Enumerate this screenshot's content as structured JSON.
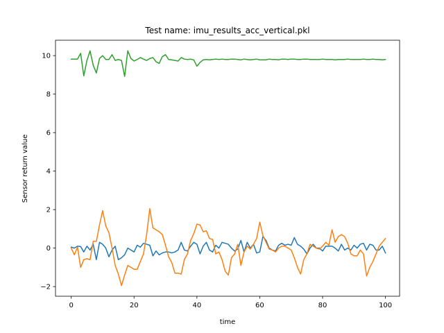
{
  "chart_data": {
    "type": "line",
    "title": "Test name: imu_results_acc_vertical.pkl",
    "xlabel": "time",
    "ylabel": "Sensor return value",
    "xlim": [
      -5,
      104.5
    ],
    "ylim": [
      -2.5,
      10.8
    ],
    "xticks": [
      0,
      20,
      40,
      60,
      80,
      100
    ],
    "yticks": [
      -2,
      0,
      2,
      4,
      6,
      8,
      10
    ],
    "grid": false,
    "series": [
      {
        "color": "#1f77b4",
        "values": [
          0.05,
          0.0,
          0.1,
          0.08,
          -0.2,
          0.1,
          -0.1,
          0.2,
          -0.6,
          0.3,
          0.2,
          0.0,
          -0.45,
          -0.1,
          0.1,
          -0.6,
          -0.5,
          -0.35,
          0.0,
          -0.1,
          -0.2,
          0.15,
          0.05,
          0.25,
          0.2,
          0.15,
          -0.4,
          -0.15,
          -0.35,
          -0.25,
          -0.2,
          -0.2,
          -0.25,
          -0.2,
          -0.1,
          0.3,
          -0.1,
          -0.15,
          0.1,
          0.3,
          0.2,
          -0.3,
          0.1,
          0.3,
          -0.1,
          -0.2,
          0.15,
          0.0,
          0.3,
          0.25,
          0.2,
          0.0,
          -0.15,
          -0.05,
          0.4,
          -0.2,
          0.3,
          0.0,
          0.2,
          -0.25,
          -0.2,
          0.6,
          0.4,
          0.0,
          -0.1,
          -0.15,
          0.15,
          0.25,
          0.15,
          0.2,
          0.15,
          0.55,
          0.2,
          0.1,
          -0.05,
          -0.3,
          0.0,
          0.2,
          0.0,
          0.0,
          -0.15,
          0.1,
          0.1,
          0.1,
          0.0,
          -0.15,
          0.2,
          -0.1,
          0.0,
          -0.1,
          0.15,
          0.0,
          0.2,
          0.25,
          -0.1,
          0.2,
          0.15,
          -0.1,
          -0.1,
          0.1,
          -0.25
        ]
      },
      {
        "color": "#ff7f0e",
        "values": [
          0.0,
          -0.35,
          0.05,
          -1.0,
          -0.6,
          -0.55,
          -0.6,
          0.35,
          0.35,
          1.2,
          1.95,
          1.15,
          0.8,
          0.0,
          -0.9,
          -1.35,
          -1.95,
          -1.4,
          -0.9,
          -1.0,
          -1.1,
          -1.1,
          -0.7,
          -0.3,
          0.7,
          2.05,
          1.05,
          0.95,
          0.85,
          0.7,
          0.15,
          -0.45,
          -0.75,
          -1.3,
          -1.3,
          -1.35,
          -0.6,
          -0.3,
          0.4,
          0.75,
          1.25,
          1.2,
          0.85,
          0.9,
          0.5,
          0.45,
          -0.3,
          -0.2,
          -0.6,
          -1.2,
          -1.4,
          -0.5,
          -0.3,
          0.2,
          -0.9,
          -0.2,
          0.1,
          -0.05,
          0.2,
          0.5,
          1.35,
          0.65,
          0.3,
          -0.05,
          -0.1,
          -0.2,
          0.0,
          0.1,
          0.1,
          0.0,
          -0.1,
          -0.5,
          -1.0,
          -1.35,
          -0.6,
          -0.3,
          0.2,
          0.1,
          0.0,
          -0.05,
          0.1,
          0.3,
          0.15,
          0.95,
          0.3,
          0.6,
          0.7,
          0.6,
          0.25,
          -0.3,
          -0.4,
          -0.4,
          -0.1,
          -0.3,
          -1.45,
          -1.0,
          -0.7,
          -0.3,
          0.1,
          0.3,
          0.5
        ]
      },
      {
        "color": "#2ca02c",
        "values": [
          9.82,
          9.82,
          9.82,
          10.12,
          8.95,
          9.75,
          10.25,
          9.5,
          9.1,
          9.85,
          10.0,
          9.8,
          9.8,
          10.05,
          9.75,
          9.8,
          9.75,
          8.92,
          10.25,
          9.85,
          9.72,
          9.8,
          9.9,
          9.82,
          9.75,
          9.85,
          9.9,
          9.68,
          9.6,
          9.95,
          10.05,
          9.8,
          9.78,
          9.75,
          9.72,
          9.9,
          9.82,
          9.8,
          9.82,
          9.78,
          9.45,
          9.65,
          9.78,
          9.8,
          9.78,
          9.8,
          9.82,
          9.8,
          9.82,
          9.8,
          9.8,
          9.82,
          9.82,
          9.8,
          9.78,
          9.82,
          9.8,
          9.78,
          9.8,
          9.82,
          9.78,
          9.78,
          9.78,
          9.82,
          9.8,
          9.8,
          9.78,
          9.82,
          9.82,
          9.8,
          9.82,
          9.82,
          9.8,
          9.8,
          9.82,
          9.82,
          9.8,
          9.8,
          9.8,
          9.8,
          9.82,
          9.8,
          9.8,
          9.8,
          9.78,
          9.8,
          9.8,
          9.8,
          9.82,
          9.8,
          9.8,
          9.8,
          9.8,
          9.82,
          9.8,
          9.8,
          9.82,
          9.8,
          9.8,
          9.78,
          9.8
        ]
      }
    ]
  }
}
